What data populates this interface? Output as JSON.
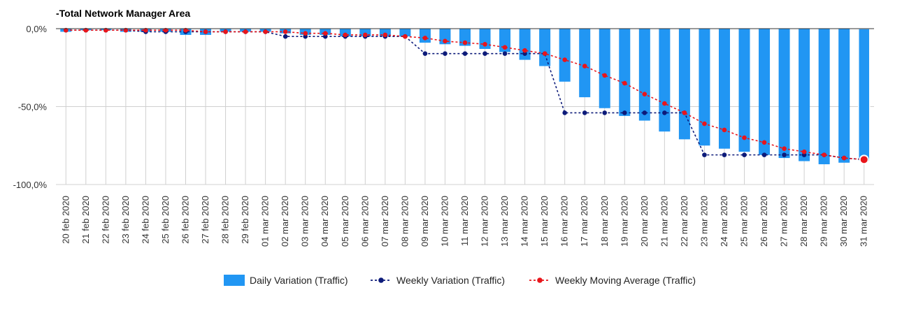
{
  "chart_data": {
    "type": "bar",
    "title": "-Total Network Manager Area",
    "xlabel": "",
    "ylabel": "",
    "ylim": [
      -100,
      0
    ],
    "y_ticks": [
      0,
      -50,
      -100
    ],
    "y_tick_labels": [
      "0,0%",
      "-50,0%",
      "-100,0%"
    ],
    "grid": true,
    "legend_position": "bottom",
    "categories": [
      "20 feb 2020",
      "21 feb 2020",
      "22 feb 2020",
      "23 feb 2020",
      "24 feb 2020",
      "25 feb 2020",
      "26 feb 2020",
      "27 feb 2020",
      "28 feb 2020",
      "29 feb 2020",
      "01 mar 2020",
      "02 mar 2020",
      "03 mar 2020",
      "04 mar 2020",
      "05 mar 2020",
      "06 mar 2020",
      "07 mar 2020",
      "08 mar 2020",
      "09 mar 2020",
      "10 mar 2020",
      "11 mar 2020",
      "12 mar 2020",
      "13 mar 2020",
      "14 mar 2020",
      "15 mar 2020",
      "16 mar 2020",
      "17 mar 2020",
      "18 mar 2020",
      "19 mar 2020",
      "20 mar 2020",
      "21 mar 2020",
      "22 mar 2020",
      "23 mar 2020",
      "24 mar 2020",
      "25 mar 2020",
      "26 mar 2020",
      "27 mar 2020",
      "28 mar 2020",
      "29 mar 2020",
      "30 mar 2020",
      "31 mar 2020"
    ],
    "series": [
      {
        "name": "Daily Variation (Traffic)",
        "type": "bar",
        "color": "#2196F3",
        "values": [
          -2,
          -1,
          -1,
          -2,
          -2,
          -2,
          -4,
          -4,
          -2,
          -2,
          -2,
          -3,
          -4,
          -4,
          -5,
          -5,
          -5,
          -5,
          -9,
          -10,
          -11,
          -13,
          -15,
          -20,
          -24,
          -34,
          -44,
          -51,
          -56,
          -59,
          -66,
          -71,
          -75,
          -77,
          -79,
          -81,
          -83,
          -85,
          -87,
          -86,
          -85
        ]
      },
      {
        "name": "Weekly Variation (Traffic)",
        "type": "line",
        "style": "dotted",
        "color": "#0D1B7A",
        "values": [
          -1,
          -1,
          -1,
          -1,
          -2,
          -2,
          -2,
          -2,
          -2,
          -2,
          -2,
          -5,
          -5,
          -5,
          -5,
          -5,
          -5,
          -5,
          -16,
          -16,
          -16,
          -16,
          -16,
          -16,
          -16,
          -54,
          -54,
          -54,
          -54,
          -54,
          -54,
          -54,
          -81,
          -81,
          -81,
          -81,
          -81,
          -81,
          -81,
          -83,
          -84
        ]
      },
      {
        "name": "Weekly Moving Average (Traffic)",
        "type": "line",
        "style": "dotted",
        "color": "#E8151B",
        "values": [
          -1,
          -1,
          -1,
          -1,
          -1,
          -1,
          -1,
          -2,
          -2,
          -2,
          -2,
          -2,
          -3,
          -3,
          -4,
          -4,
          -4,
          -5,
          -6,
          -8,
          -9,
          -10,
          -12,
          -14,
          -16,
          -20,
          -24,
          -30,
          -35,
          -42,
          -48,
          -54,
          -61,
          -65,
          -70,
          -73,
          -77,
          -79,
          -81,
          -83,
          -84
        ]
      }
    ]
  }
}
